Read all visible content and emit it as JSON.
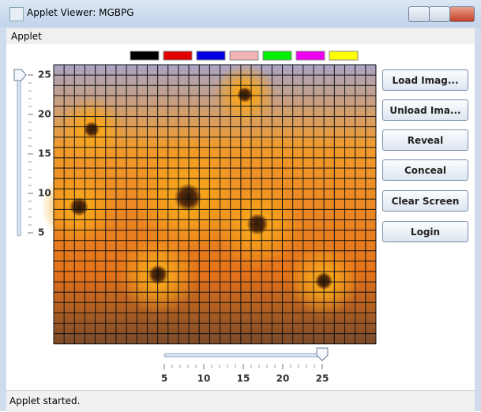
{
  "window": {
    "title": "Applet Viewer: MGBPG"
  },
  "menu": [
    "Applet"
  ],
  "palette": [
    "#000000",
    "#e00000",
    "#0000e0",
    "#f0b4b4",
    "#00ee00",
    "#ee00ee",
    "#ffff00"
  ],
  "vertical_slider": {
    "ticks": [
      25,
      20,
      15,
      10,
      5
    ],
    "value": 25
  },
  "horizontal_slider": {
    "ticks": [
      5,
      10,
      15,
      20,
      25
    ],
    "value": 25
  },
  "buttons": [
    "Load Imag...",
    "Unload Ima...",
    "Reveal",
    "Conceal",
    "Clear Screen",
    "Login"
  ],
  "status": "Applet started."
}
